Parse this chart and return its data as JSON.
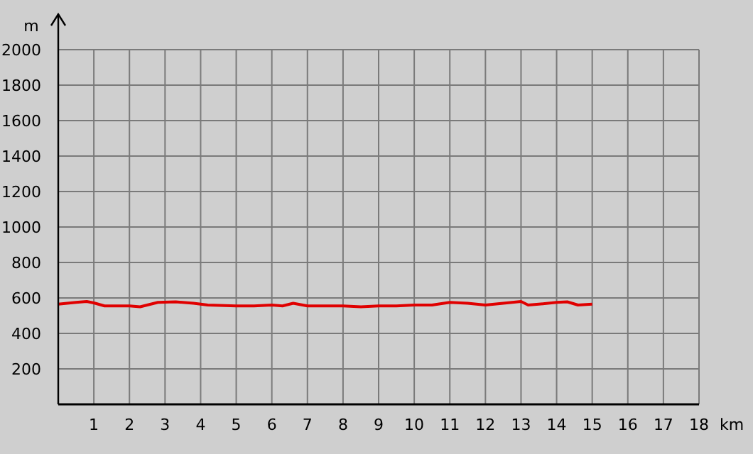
{
  "chart_data": {
    "type": "line",
    "xlabel": "km",
    "ylabel": "m",
    "x": [
      0,
      0.5,
      0.8,
      1,
      1.3,
      2,
      2.3,
      2.8,
      3.3,
      3.8,
      4.2,
      5,
      5.5,
      6,
      6.3,
      6.6,
      7,
      7.5,
      8,
      8.5,
      9,
      9.5,
      10,
      10.5,
      11,
      11.5,
      12,
      12.5,
      13,
      13.2,
      13.5,
      14,
      14.3,
      14.6,
      15
    ],
    "series": [
      {
        "color": "#e00000",
        "values": [
          565,
          575,
          580,
          572,
          555,
          555,
          550,
          575,
          578,
          570,
          560,
          555,
          555,
          560,
          555,
          570,
          555,
          555,
          555,
          550,
          555,
          555,
          560,
          560,
          575,
          570,
          560,
          570,
          580,
          560,
          565,
          575,
          578,
          560,
          565
        ]
      }
    ],
    "xlim": [
      0,
      18
    ],
    "ylim": [
      0,
      2000
    ],
    "xticks": [
      1,
      2,
      3,
      4,
      5,
      6,
      7,
      8,
      9,
      10,
      11,
      12,
      13,
      14,
      15,
      16,
      17,
      18
    ],
    "yticks": [
      200,
      400,
      600,
      800,
      1000,
      1200,
      1400,
      1600,
      1800,
      2000
    ],
    "grid": true,
    "marker": "none",
    "line_style": "solid"
  }
}
